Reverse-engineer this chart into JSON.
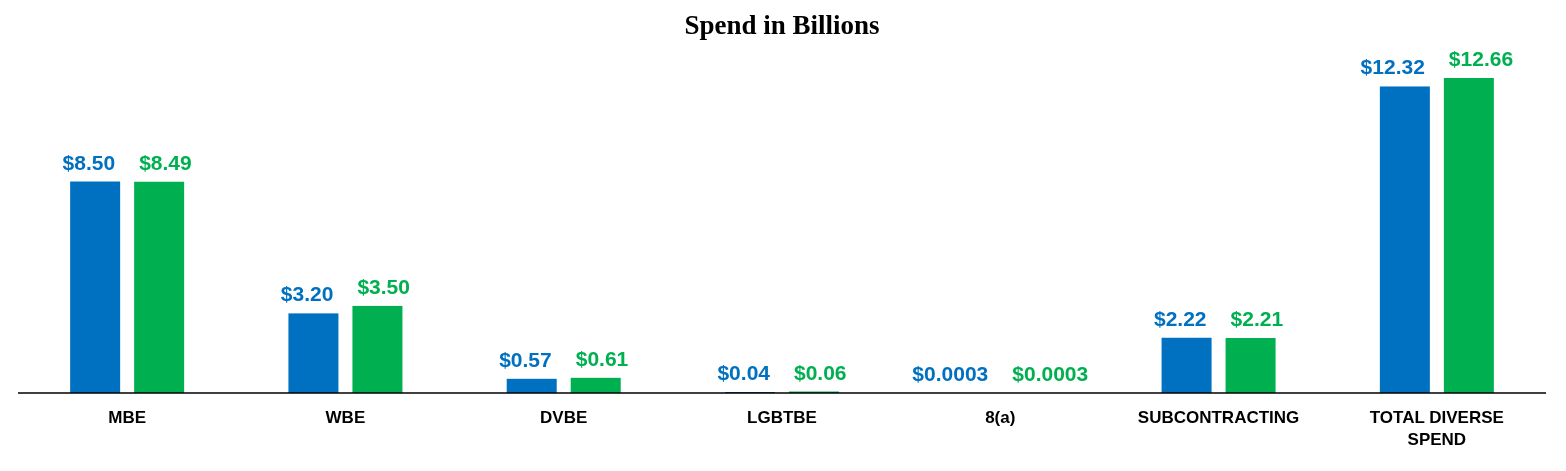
{
  "chart_data": {
    "type": "bar",
    "title": "Spend in Billions",
    "categories": [
      "MBE",
      "WBE",
      "DVBE",
      "LGBTBE",
      "8(a)",
      "SUBCONTRACTING",
      "TOTAL DIVERSE SPEND"
    ],
    "series": [
      {
        "color": "#0070c0",
        "values": [
          8.5,
          3.2,
          0.57,
          0.04,
          0.0003,
          2.22,
          12.32
        ],
        "value_labels": [
          "$8.50",
          "$3.20",
          "$0.57",
          "$0.04",
          "$0.0003",
          "$2.22",
          "$12.32"
        ]
      },
      {
        "color": "#00b050",
        "values": [
          8.49,
          3.5,
          0.61,
          0.06,
          0.0003,
          2.21,
          12.66
        ],
        "value_labels": [
          "$8.49",
          "$3.50",
          "$0.61",
          "$0.06",
          "$0.0003",
          "$2.21",
          "$12.66"
        ]
      }
    ]
  }
}
